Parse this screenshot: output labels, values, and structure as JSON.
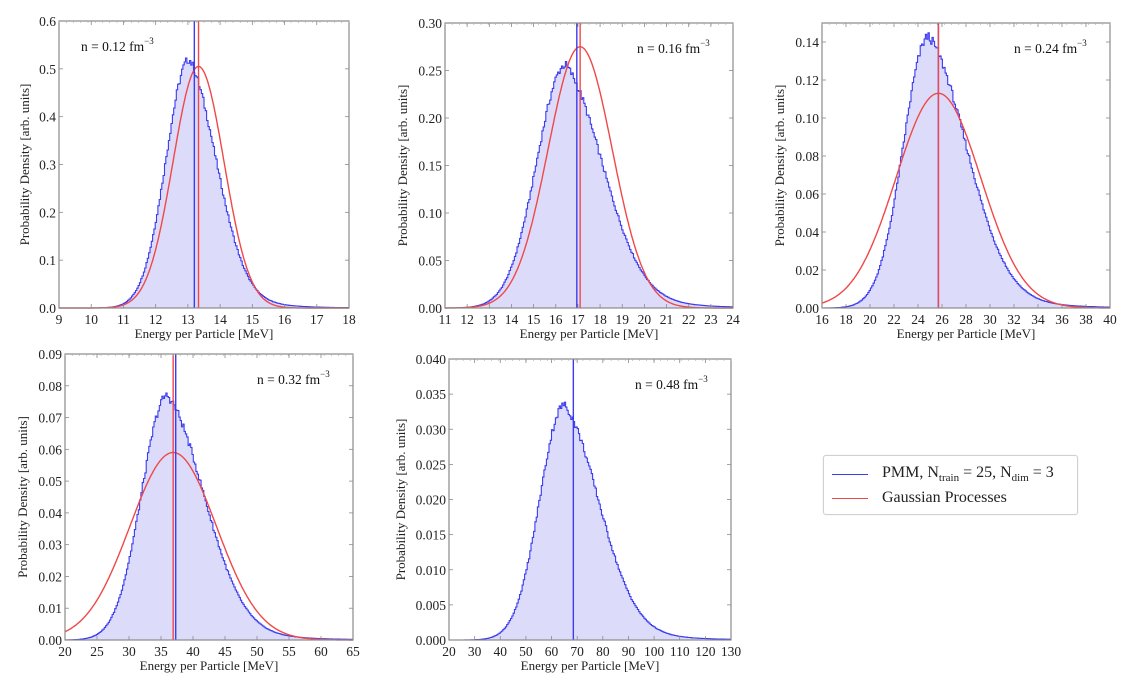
{
  "chart_data": [
    {
      "type": "histogram+line",
      "annotation": {
        "prefix": "n = 0.12 fm",
        "sup": "−3"
      },
      "xlabel": "Energy per Particle [MeV]",
      "ylabel": "Probability Density [arb. units]",
      "xlim": [
        9,
        18
      ],
      "ylim": [
        0,
        0.6
      ],
      "xticks": [
        9,
        10,
        11,
        12,
        13,
        14,
        15,
        16,
        17,
        18
      ],
      "yticks": [
        0.0,
        0.1,
        0.2,
        0.3,
        0.4,
        0.5,
        0.6
      ],
      "ytick_labels": [
        "0.0",
        "0.1",
        "0.2",
        "0.3",
        "0.4",
        "0.5",
        "0.6"
      ],
      "annotation_position": "top-left",
      "pmm_hist": {
        "mode": 13.05,
        "peak": 0.52,
        "sigma_left": 0.72,
        "sigma_right": 0.88,
        "tail": 0.55
      },
      "pmm_mean": 13.2,
      "gp": {
        "mean": 13.33,
        "peak": 0.505
      },
      "gp_mean": 13.33
    },
    {
      "type": "histogram+line",
      "annotation": {
        "prefix": "n = 0.16 fm",
        "sup": "−3"
      },
      "xlabel": "Energy per Particle [MeV]",
      "ylabel": "Probability Density [arb. units]",
      "xlim": [
        11,
        24
      ],
      "ylim": [
        0,
        0.3
      ],
      "xticks": [
        11,
        12,
        13,
        14,
        15,
        16,
        17,
        18,
        19,
        20,
        21,
        22,
        23,
        24
      ],
      "yticks": [
        0.0,
        0.05,
        0.1,
        0.15,
        0.2,
        0.25,
        0.3
      ],
      "ytick_labels": [
        "0.00",
        "0.05",
        "0.10",
        "0.15",
        "0.20",
        "0.25",
        "0.30"
      ],
      "annotation_position": "top-right",
      "pmm_hist": {
        "mode": 16.45,
        "peak": 0.256,
        "sigma_left": 1.3,
        "sigma_right": 1.75,
        "tail": 0.55
      },
      "pmm_mean": 16.95,
      "gp": {
        "mean": 17.1,
        "peak": 0.275
      },
      "gp_mean": 17.1
    },
    {
      "type": "histogram+line",
      "annotation": {
        "prefix": "n = 0.24 fm",
        "sup": "−3"
      },
      "xlabel": "Energy per Particle [MeV]",
      "ylabel": "Probability Density [arb. units]",
      "xlim": [
        16,
        40
      ],
      "ylim": [
        0,
        0.15
      ],
      "xticks": [
        16,
        18,
        20,
        22,
        24,
        26,
        28,
        30,
        32,
        34,
        36,
        38,
        40
      ],
      "yticks": [
        0.0,
        0.02,
        0.04,
        0.06,
        0.08,
        0.1,
        0.12,
        0.14
      ],
      "ytick_labels": [
        "0.00",
        "0.02",
        "0.04",
        "0.06",
        "0.08",
        "0.10",
        "0.12",
        "0.14"
      ],
      "annotation_position": "top-right",
      "pmm_hist": {
        "mode": 24.9,
        "peak": 0.143,
        "sigma_left": 2.1,
        "sigma_right": 3.3,
        "tail": 0.5
      },
      "pmm_mean": 25.7,
      "gp": {
        "mean": 25.7,
        "peak": 0.113
      },
      "gp_mean": 25.7
    },
    {
      "type": "histogram+line",
      "annotation": {
        "prefix": "n = 0.32 fm",
        "sup": "−3"
      },
      "xlabel": "Energy per Particle [MeV]",
      "ylabel": "Probability Density [arb. units]",
      "xlim": [
        20,
        65
      ],
      "ylim": [
        0,
        0.09
      ],
      "xticks": [
        20,
        25,
        30,
        35,
        40,
        45,
        50,
        55,
        60,
        65
      ],
      "yticks": [
        0.0,
        0.01,
        0.02,
        0.03,
        0.04,
        0.05,
        0.06,
        0.07,
        0.08,
        0.09
      ],
      "ytick_labels": [
        "0.00",
        "0.01",
        "0.02",
        "0.03",
        "0.04",
        "0.05",
        "0.06",
        "0.07",
        "0.08",
        "0.09"
      ],
      "annotation_position": "top-right",
      "pmm_hist": {
        "mode": 36.0,
        "peak": 0.077,
        "sigma_left": 4.0,
        "sigma_right": 6.0,
        "tail": 0.5
      },
      "pmm_mean": 37.3,
      "gp": {
        "mean": 36.9,
        "peak": 0.059
      },
      "gp_mean": 36.9
    },
    {
      "type": "histogram+line",
      "annotation": {
        "prefix": "n = 0.48 fm",
        "sup": "−3"
      },
      "xlabel": "Energy per Particle [MeV]",
      "ylabel": "Probability Density [arb. units]",
      "xlim": [
        20,
        130
      ],
      "ylim": [
        0,
        0.04
      ],
      "xticks": [
        20,
        30,
        40,
        50,
        60,
        70,
        80,
        90,
        100,
        110,
        120,
        130
      ],
      "yticks": [
        0.0,
        0.005,
        0.01,
        0.015,
        0.02,
        0.025,
        0.03,
        0.035,
        0.04
      ],
      "ytick_labels": [
        "0.000",
        "0.005",
        "0.010",
        "0.015",
        "0.020",
        "0.025",
        "0.030",
        "0.035",
        "0.040"
      ],
      "annotation_position": "top-right",
      "pmm_hist": {
        "mode": 65.0,
        "peak": 0.0335,
        "sigma_left": 9.5,
        "sigma_right": 14.0,
        "tail": 0.5
      },
      "pmm_mean": 68.5,
      "gp": null,
      "gp_mean": null
    }
  ],
  "legend": {
    "entries": [
      {
        "label_main": "PMM, N",
        "sub1": "train",
        "mid": " = 25, N",
        "sub2": "dim",
        "end": " = 3",
        "color": "#3b3bf0"
      },
      {
        "label": "Gaussian Processes",
        "color": "#f04848"
      }
    ],
    "placement": "right-middle"
  },
  "colors": {
    "pmm_line": "#3b3bf0",
    "pmm_fill": "#dcdcfa",
    "gp_line": "#f04848",
    "frame": "#8a8a8a"
  }
}
